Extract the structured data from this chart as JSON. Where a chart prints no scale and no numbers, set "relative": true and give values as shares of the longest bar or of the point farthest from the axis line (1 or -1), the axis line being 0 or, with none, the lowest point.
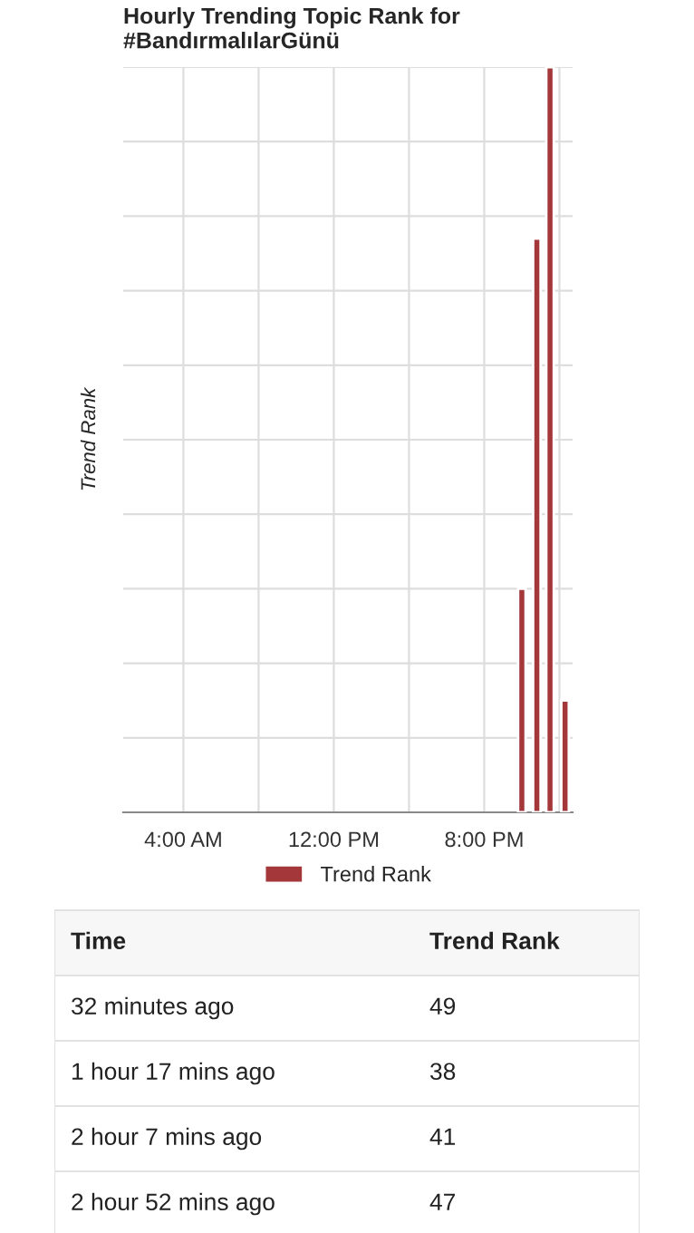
{
  "chart_data": [
    {
      "type": "bar",
      "title": "Hourly Trending Topic Rank for\n#BandırmalılarGünü",
      "ylabel": "Trend Rank",
      "relative": true,
      "x": [
        22.0,
        22.8,
        23.5,
        24.3
      ],
      "series": [
        {
          "name": "Trend Rank",
          "color": "#a3373a",
          "values": [
            0.3,
            0.77,
            1,
            0.15
          ]
        }
      ],
      "xlim": [
        0.8,
        24.7
      ],
      "xticks": [
        {
          "value": 4,
          "label": "4:00 AM"
        },
        {
          "value": 8,
          "label": null
        },
        {
          "value": 12,
          "label": "12:00 PM"
        },
        {
          "value": 16,
          "label": null
        },
        {
          "value": 20,
          "label": "8:00 PM"
        },
        {
          "value": 24,
          "label": null
        }
      ],
      "grid": true,
      "legend": "bottom"
    },
    {
      "type": "other",
      "annotations": [
        "Time",
        "Trend Rank",
        "32 minutes ago",
        "49",
        "1 hour 17 mins ago",
        "38",
        "2 hour 7 mins ago",
        "41",
        "2 hour 52 mins ago",
        "47"
      ]
    }
  ]
}
